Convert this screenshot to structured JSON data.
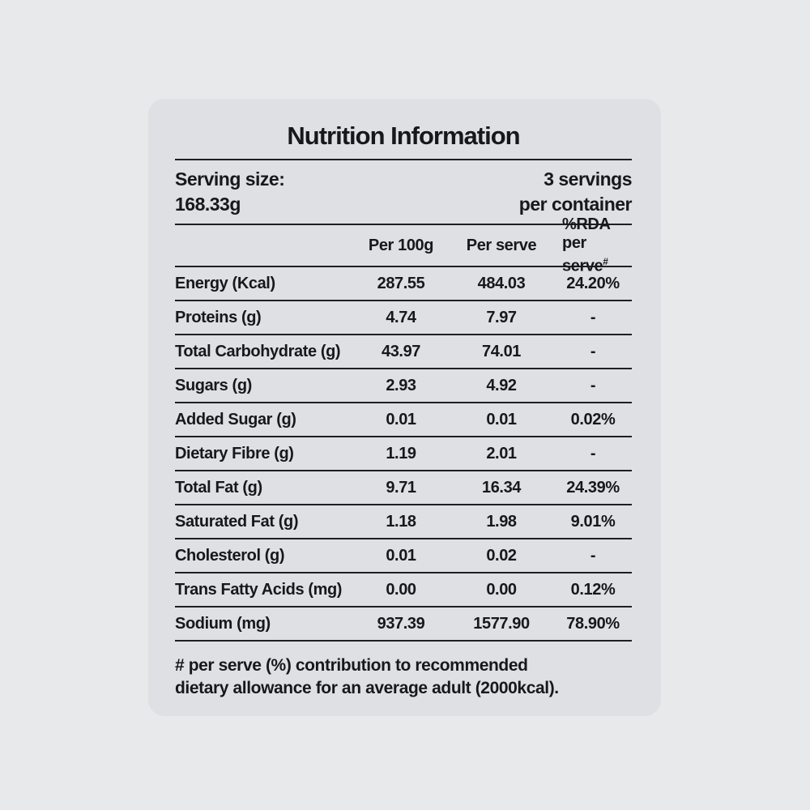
{
  "title": "Nutrition Information",
  "serving": {
    "size_label": "Serving size:",
    "size_value": "168.33g",
    "servings_line1": "3 servings",
    "servings_line2": "per container"
  },
  "columns": {
    "per_100g": "Per 100g",
    "per_serve": "Per serve",
    "rda_line1": "%RDA",
    "rda_line2": "per serve",
    "rda_superscript": "#"
  },
  "rows": [
    {
      "name": "Energy (Kcal)",
      "per_100g": "287.55",
      "per_serve": "484.03",
      "rda_per_serve": "24.20%"
    },
    {
      "name": "Proteins (g)",
      "per_100g": "4.74",
      "per_serve": "7.97",
      "rda_per_serve": "-"
    },
    {
      "name": "Total Carbohydrate (g)",
      "per_100g": "43.97",
      "per_serve": "74.01",
      "rda_per_serve": "-"
    },
    {
      "name": "Sugars (g)",
      "per_100g": "2.93",
      "per_serve": "4.92",
      "rda_per_serve": "-"
    },
    {
      "name": "Added Sugar (g)",
      "per_100g": "0.01",
      "per_serve": "0.01",
      "rda_per_serve": "0.02%"
    },
    {
      "name": "Dietary Fibre (g)",
      "per_100g": "1.19",
      "per_serve": "2.01",
      "rda_per_serve": "-"
    },
    {
      "name": "Total Fat (g)",
      "per_100g": "9.71",
      "per_serve": "16.34",
      "rda_per_serve": "24.39%"
    },
    {
      "name": "Saturated Fat (g)",
      "per_100g": "1.18",
      "per_serve": "1.98",
      "rda_per_serve": "9.01%"
    },
    {
      "name": "Cholesterol (g)",
      "per_100g": "0.01",
      "per_serve": "0.02",
      "rda_per_serve": "-"
    },
    {
      "name": "Trans Fatty Acids (mg)",
      "per_100g": "0.00",
      "per_serve": "0.00",
      "rda_per_serve": "0.12%"
    },
    {
      "name": "Sodium (mg)",
      "per_100g": "937.39",
      "per_serve": "1577.90",
      "rda_per_serve": "78.90%"
    }
  ],
  "footnote": {
    "line1": "# per serve (%) contribution to recommended",
    "line2": "dietary allowance for an average adult (2000kcal)."
  },
  "colors": {
    "page_bg": "#e8e9ea",
    "card_bg": "#dee0e3",
    "text": "#17181b",
    "rule": "#1d1f23"
  }
}
